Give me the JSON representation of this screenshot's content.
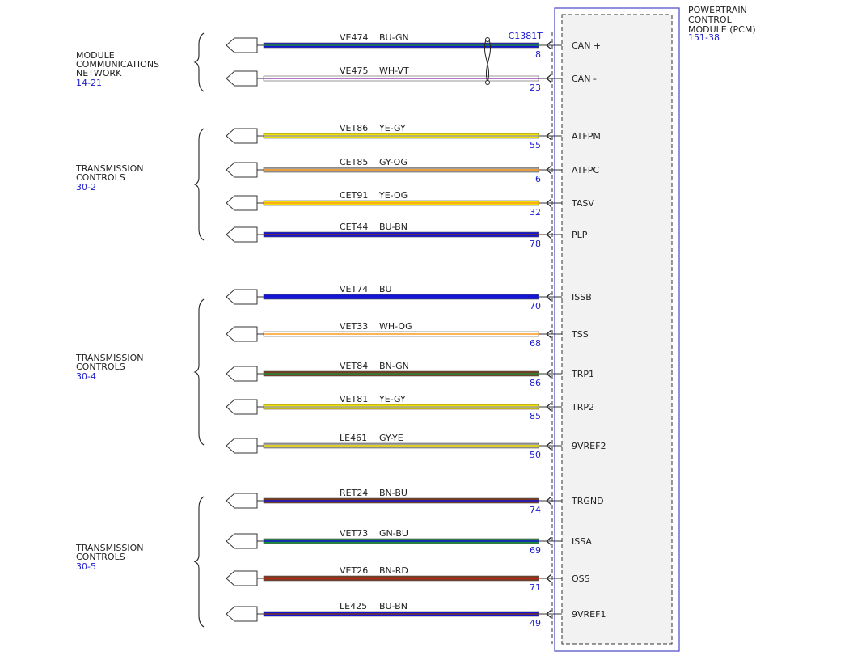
{
  "colors": {
    "BU": "#1414d2",
    "GN": "#1e8a3c",
    "WH": "#ffffff",
    "VT": "#9a46b4",
    "YE": "#f0e000",
    "GY": "#a0a0a0",
    "OG": "#ff9a1e",
    "BN": "#7a3a1e",
    "RD": "#d21e1e",
    "frame": "#4646c8",
    "ref": "#1a1ad0"
  },
  "pcm": {
    "name_lines": [
      "POWERTRAIN",
      "CONTROL",
      "MODULE (PCM)"
    ],
    "ref": "151-38",
    "connector": "C1381T"
  },
  "groups": [
    {
      "lines": [
        "MODULE",
        "COMMUNICATIONS",
        "NETWORK"
      ],
      "ref": "14-21"
    },
    {
      "lines": [
        "TRANSMISSION",
        "CONTROLS"
      ],
      "ref": "30-2"
    },
    {
      "lines": [
        "TRANSMISSION",
        "CONTROLS"
      ],
      "ref": "30-4"
    },
    {
      "lines": [
        "TRANSMISSION",
        "CONTROLS"
      ],
      "ref": "30-5"
    }
  ],
  "wires": [
    {
      "circuit": "VE474",
      "color": "BU-GN",
      "pin": "8",
      "signal": "CAN +"
    },
    {
      "circuit": "VE475",
      "color": "WH-VT",
      "pin": "23",
      "signal": "CAN -"
    },
    {
      "circuit": "VET86",
      "color": "YE-GY",
      "pin": "55",
      "signal": "ATFPM"
    },
    {
      "circuit": "CET85",
      "color": "GY-OG",
      "pin": "6",
      "signal": "ATFPC"
    },
    {
      "circuit": "CET91",
      "color": "YE-OG",
      "pin": "32",
      "signal": "TASV"
    },
    {
      "circuit": "CET44",
      "color": "BU-BN",
      "pin": "78",
      "signal": "PLP"
    },
    {
      "circuit": "VET74",
      "color": "BU",
      "pin": "70",
      "signal": "ISSB"
    },
    {
      "circuit": "VET33",
      "color": "WH-OG",
      "pin": "68",
      "signal": "TSS"
    },
    {
      "circuit": "VET84",
      "color": "BN-GN",
      "pin": "86",
      "signal": "TRP1"
    },
    {
      "circuit": "VET81",
      "color": "YE-GY",
      "pin": "85",
      "signal": "TRP2"
    },
    {
      "circuit": "LE461",
      "color": "GY-YE",
      "pin": "50",
      "signal": "9VREF2"
    },
    {
      "circuit": "RET24",
      "color": "BN-BU",
      "pin": "74",
      "signal": "TRGND"
    },
    {
      "circuit": "VET73",
      "color": "GN-BU",
      "pin": "69",
      "signal": "ISSA"
    },
    {
      "circuit": "VET26",
      "color": "BN-RD",
      "pin": "71",
      "signal": "OSS"
    },
    {
      "circuit": "LE425",
      "color": "BU-BN",
      "pin": "49",
      "signal": "9VREF1"
    }
  ]
}
